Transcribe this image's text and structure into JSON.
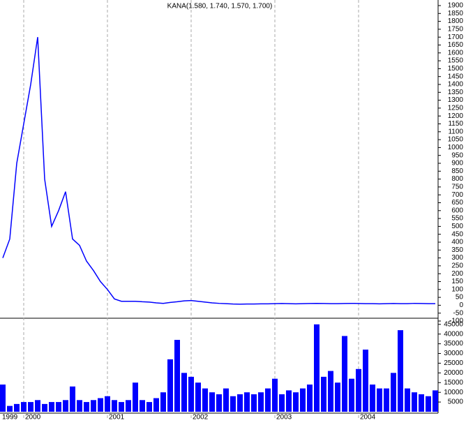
{
  "chart_data": [
    {
      "type": "line",
      "title": "KANA(1.580, 1.740, 1.570, 1.700)",
      "series": [
        {
          "name": "KANA",
          "color": "#0000ff",
          "values": [
            300,
            420,
            900,
            1150,
            1400,
            1700,
            800,
            500,
            600,
            720,
            420,
            380,
            280,
            220,
            150,
            100,
            40,
            25,
            25,
            25,
            22,
            20,
            15,
            12,
            18,
            22,
            28,
            30,
            25,
            20,
            15,
            12,
            10,
            8,
            7,
            8,
            8,
            9,
            9,
            10,
            11,
            10,
            9,
            10,
            11,
            12,
            11,
            10,
            10,
            11,
            12,
            11,
            10,
            10,
            9,
            10,
            11,
            10,
            10,
            12,
            11,
            10,
            10
          ]
        }
      ],
      "ylim": [
        -100,
        1900
      ],
      "yticks": [
        -100,
        -50,
        0,
        50,
        100,
        150,
        200,
        250,
        300,
        350,
        400,
        450,
        500,
        550,
        600,
        650,
        700,
        750,
        800,
        850,
        900,
        950,
        1000,
        1050,
        1100,
        1150,
        1200,
        1250,
        1300,
        1350,
        1400,
        1450,
        1500,
        1550,
        1600,
        1650,
        1700,
        1750,
        1800,
        1850,
        1900
      ]
    },
    {
      "type": "bar",
      "color": "#0000ff",
      "categories": [
        "1999",
        null,
        null,
        "2000",
        null,
        null,
        null,
        null,
        null,
        null,
        null,
        null,
        null,
        null,
        null,
        "2001",
        null,
        null,
        null,
        null,
        null,
        null,
        null,
        null,
        null,
        null,
        null,
        "2002",
        null,
        null,
        null,
        null,
        null,
        null,
        null,
        null,
        null,
        null,
        null,
        "2003",
        null,
        null,
        null,
        null,
        null,
        null,
        null,
        null,
        null,
        null,
        null,
        "2004",
        null,
        null,
        null,
        null,
        null,
        null,
        null,
        null,
        null,
        null,
        null
      ],
      "values": [
        14000,
        3000,
        4000,
        5000,
        5000,
        6000,
        4000,
        5000,
        5000,
        6000,
        13000,
        6000,
        5000,
        6000,
        7000,
        8000,
        6000,
        5000,
        6000,
        15000,
        6000,
        5000,
        7000,
        10000,
        27000,
        37000,
        20000,
        18000,
        15000,
        12000,
        10000,
        9000,
        12000,
        8000,
        9000,
        10000,
        9000,
        10000,
        12000,
        17000,
        9000,
        11000,
        10000,
        12000,
        14000,
        45000,
        18000,
        21000,
        15000,
        39000,
        17000,
        22000,
        32000,
        14000,
        12000,
        12000,
        20000,
        42000,
        12000,
        10000,
        9000,
        8000,
        11000
      ],
      "ylim": [
        0,
        46000
      ],
      "yticks": [
        5000,
        10000,
        15000,
        20000,
        25000,
        30000,
        35000,
        40000,
        45000
      ]
    }
  ]
}
